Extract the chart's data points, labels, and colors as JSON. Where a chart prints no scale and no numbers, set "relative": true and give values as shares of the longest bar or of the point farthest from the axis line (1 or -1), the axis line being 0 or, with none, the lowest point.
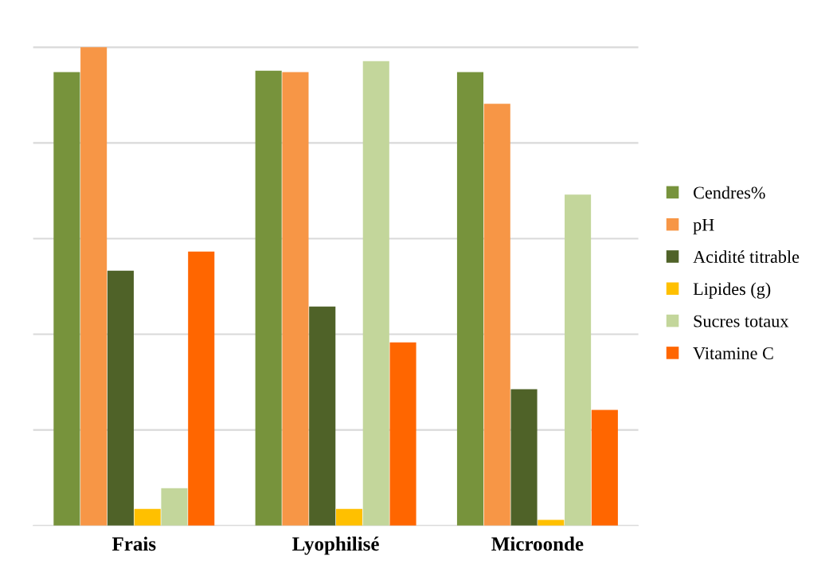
{
  "chart_data": {
    "type": "bar",
    "relative": true,
    "categories": [
      "Frais",
      "Lyophilisé",
      "Microonde"
    ],
    "series": [
      {
        "name": "Cendres%",
        "color": "#77933c",
        "values": [
          0.948,
          0.951,
          0.948
        ]
      },
      {
        "name": "pH",
        "color": "#f79646",
        "values": [
          1,
          0.948,
          0.882
        ]
      },
      {
        "name": "Acidité titrable",
        "color": "#4f6228",
        "values": [
          0.533,
          0.458,
          0.285
        ]
      },
      {
        "name": "Lipides (g)",
        "color": "#ffc000",
        "values": [
          0.035,
          0.035,
          0.012
        ]
      },
      {
        "name": "Sucres totaux",
        "color": "#c3d69b",
        "values": [
          0.078,
          0.971,
          0.692
        ]
      },
      {
        "name": "Vitamine C",
        "color": "#ff6600",
        "values": [
          0.573,
          0.383,
          0.242
        ]
      }
    ],
    "grid": "y",
    "legend": "right"
  }
}
